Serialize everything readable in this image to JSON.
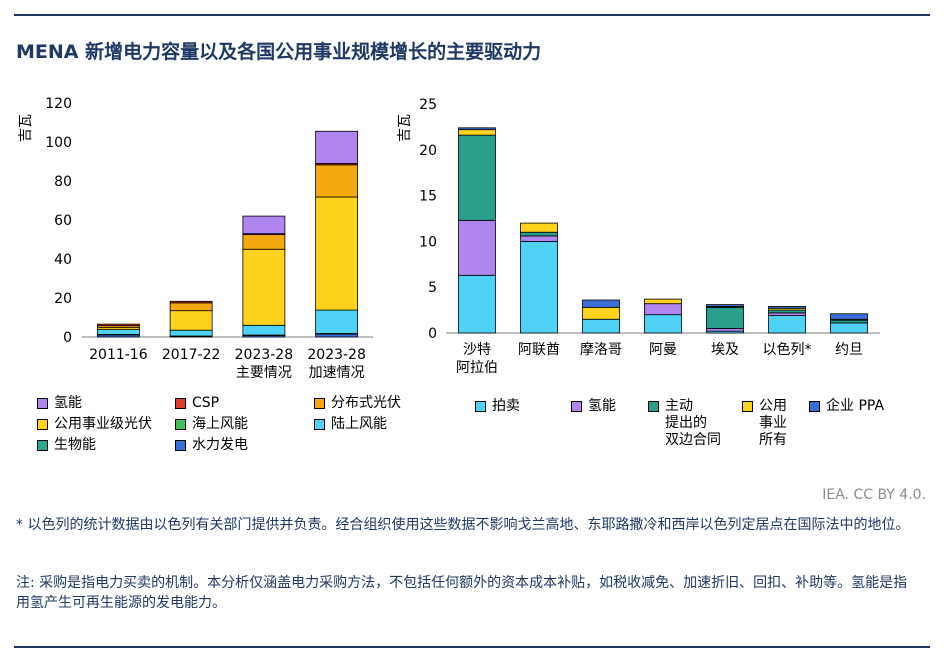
{
  "title": "MENA 新增电力容量以及各国公用事业规模增长的主要驱动力",
  "source": "IEA. CC BY 4.0.",
  "notes": {
    "footnote": "* 以色列的统计数据由以色列有关部门提供并负责。经合组织使用这些数据不影响戈兰高地、东耶路撒冷和西岸以色列定居点在国际法中的地位。",
    "note": "注: 采购是指电力买卖的机制。本分析仅涵盖电力采购方法，不包括任何额外的资本成本补贴，如税收减免、加速折旧、回扣、补助等。氢能是指用氢产生可再生能源的发电能力。"
  },
  "chart_data": [
    {
      "type": "bar",
      "stacked": true,
      "ylabel": "吉瓦",
      "ylim": [
        0,
        120
      ],
      "yticks": [
        0,
        20,
        40,
        60,
        80,
        100,
        120
      ],
      "categories": [
        "2011-16",
        "2017-22",
        "2023-28\n主要情况",
        "2023-28\n加速情况"
      ],
      "series": [
        {
          "name": "水力发电",
          "color": "#3a6fd8",
          "values": [
            1.2,
            0.3,
            0.8,
            1.5
          ]
        },
        {
          "name": "生物能",
          "color": "#26a891",
          "values": [
            0.1,
            0.2,
            0.2,
            0.3
          ]
        },
        {
          "name": "陆上风能",
          "color": "#4fd2f6",
          "values": [
            2.5,
            3.0,
            5.0,
            12.0
          ]
        },
        {
          "name": "海上风能",
          "color": "#3cc45a",
          "values": [
            0,
            0,
            0,
            0
          ]
        },
        {
          "name": "公用事业级光伏",
          "color": "#ffd21e",
          "values": [
            1.0,
            10.0,
            39.0,
            58.0
          ]
        },
        {
          "name": "分布式光伏",
          "color": "#f4a80f",
          "values": [
            1.0,
            4.0,
            7.5,
            16.5
          ]
        },
        {
          "name": "CSP",
          "color": "#e03a2e",
          "values": [
            0.8,
            0.8,
            0.5,
            0.7
          ]
        },
        {
          "name": "氢能",
          "color": "#b085f0",
          "values": [
            0,
            0,
            9.0,
            16.5
          ]
        }
      ],
      "legend": {
        "columns": 3,
        "items": [
          "氢能",
          "CSP",
          "分布式光伏",
          "公用事业级光伏",
          "海上风能",
          "陆上风能",
          "生物能",
          "水力发电"
        ]
      }
    },
    {
      "type": "bar",
      "stacked": true,
      "ylabel": "吉瓦",
      "ylim": [
        0,
        25
      ],
      "yticks": [
        0,
        5,
        10,
        15,
        20,
        25
      ],
      "categories": [
        "沙特\n阿拉伯",
        "阿联酋",
        "摩洛哥",
        "阿曼",
        "埃及",
        "以色列*",
        "约旦"
      ],
      "series": [
        {
          "name": "拍卖",
          "color": "#4fd2f6",
          "values": [
            6.3,
            10.0,
            1.5,
            2.0,
            0.2,
            1.9,
            1.1
          ]
        },
        {
          "name": "氢能",
          "color": "#b085f0",
          "values": [
            6.0,
            0.6,
            0,
            1.2,
            0.3,
            0.3,
            0
          ]
        },
        {
          "name": "主动\n提出的\n双边合同",
          "color": "#2aa08c",
          "values": [
            9.3,
            0.4,
            0,
            0,
            2.3,
            0.3,
            0.3
          ]
        },
        {
          "name": "公用\n事业\n所有",
          "color": "#ffd21e",
          "values": [
            0.6,
            1.0,
            1.3,
            0.5,
            0.1,
            0.2,
            0.1
          ]
        },
        {
          "name": "企业 PPA",
          "color": "#3a6fd8",
          "values": [
            0.2,
            0,
            0.8,
            0,
            0.2,
            0.2,
            0.6
          ]
        }
      ],
      "legend": {
        "columns": 5,
        "items": [
          "拍卖",
          "氢能",
          "主动\n提出的\n双边合同",
          "公用\n事业\n所有",
          "企业 PPA"
        ]
      }
    }
  ]
}
